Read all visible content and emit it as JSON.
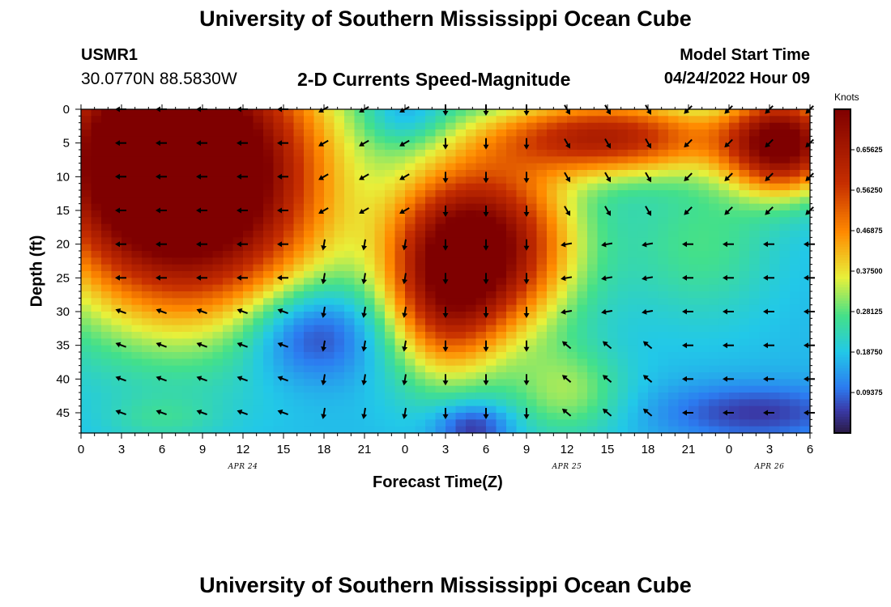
{
  "header": {
    "title": "University of Southern Mississippi Ocean Cube",
    "station": "USMR1",
    "coords": "30.0770N  88.5830W",
    "subtitle": "2-D Currents Speed-Magnitude",
    "model_start_label": "Model Start Time",
    "model_start_value": "04/24/2022 Hour 09"
  },
  "footer": {
    "title": "University of Southern Mississippi Ocean Cube"
  },
  "colors": {
    "dark_red": "#7f0000",
    "red": "#c62e00",
    "orange": "#ff8a00",
    "yellow": "#e8f03a",
    "green": "#43e08a",
    "cyan": "#22c8e8",
    "blue": "#2c7bf0",
    "indigo": "#3a3aa8",
    "dark_navy": "#2a1a45"
  },
  "chart_data": {
    "type": "heatmap",
    "title": "2-D Currents Speed-Magnitude",
    "xlabel": "Forecast Time(Z)",
    "ylabel": "Depth (ft)",
    "x_tick_labels": [
      "0",
      "3",
      "6",
      "9",
      "12",
      "15",
      "18",
      "21",
      "0",
      "3",
      "6",
      "9",
      "12",
      "15",
      "18",
      "21",
      "0",
      "3",
      "6"
    ],
    "x_hours_since_start": [
      0,
      3,
      6,
      9,
      12,
      15,
      18,
      21,
      24,
      27,
      30,
      33,
      36,
      39,
      42,
      45,
      48,
      51,
      54
    ],
    "xlim_hours": [
      0,
      54
    ],
    "date_labels": [
      {
        "text": "APR 24",
        "hour": 12
      },
      {
        "text": "APR 25",
        "hour": 36
      },
      {
        "text": "APR 26",
        "hour": 51
      }
    ],
    "y_ticks": [
      0,
      5,
      10,
      15,
      20,
      25,
      30,
      35,
      40,
      45
    ],
    "ylim": [
      0,
      48
    ],
    "y_reversed": true,
    "colorbar": {
      "label": "Knots",
      "min": 0,
      "max": 0.75,
      "tick_labels": [
        "0.65625",
        "0.56250",
        "0.46875",
        "0.37500",
        "0.28125",
        "0.18750",
        "0.09375"
      ],
      "tick_values": [
        0.65625,
        0.5625,
        0.46875,
        0.375,
        0.28125,
        0.1875,
        0.09375
      ]
    },
    "arrow_depths": [
      0,
      5,
      10,
      15,
      20,
      25,
      30,
      35,
      40,
      45
    ],
    "arrow_hours": [
      3,
      6,
      9,
      12,
      15,
      18,
      21,
      24,
      27,
      30,
      33,
      36,
      39,
      42,
      45,
      48,
      51,
      54
    ]
  }
}
